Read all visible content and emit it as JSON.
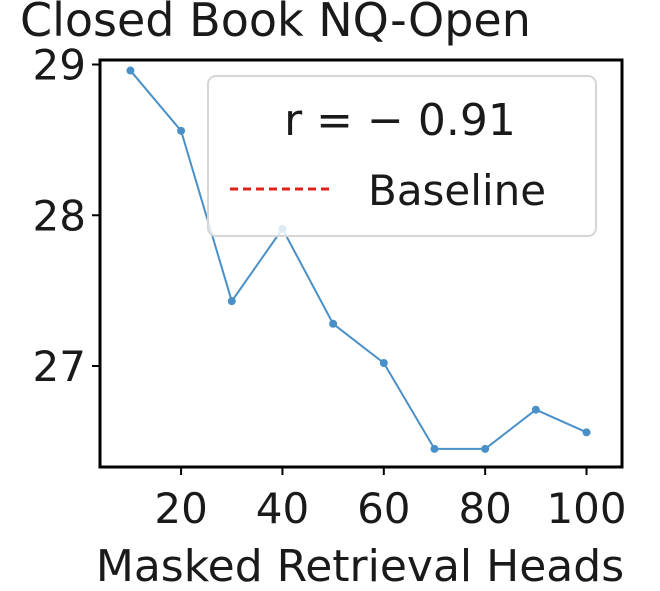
{
  "chart_data": {
    "type": "line",
    "title": "Closed Book NQ-Open",
    "xlabel": "Masked Retrieval Heads",
    "ylabel": "",
    "x": [
      10,
      20,
      30,
      40,
      50,
      60,
      70,
      80,
      90,
      100
    ],
    "series": [
      {
        "values": [
          28.96,
          28.56,
          27.43,
          27.91,
          27.28,
          27.02,
          26.45,
          26.45,
          26.71,
          26.56
        ],
        "color": "#4a90c8"
      }
    ],
    "baseline": {
      "label": "Baseline",
      "value": 29.03,
      "color": "#e0201b"
    },
    "annotation": "r = − 0.91",
    "xlim": [
      4,
      107
    ],
    "ylim": [
      26.33,
      29.03
    ],
    "xticks": [
      "20",
      "40",
      "60",
      "80",
      "100"
    ],
    "yticks": [
      "27",
      "28",
      "29"
    ],
    "legend_position": "upper-right",
    "grid": false
  }
}
